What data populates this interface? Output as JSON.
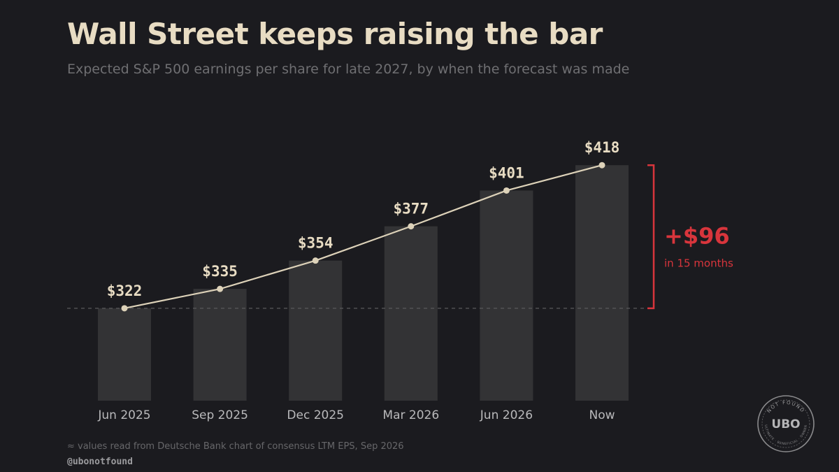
{
  "title": "Wall Street keeps raising the bar",
  "subtitle": "Expected S&P 500 earnings per share for late 2027, by when the forecast was made",
  "chart_data": {
    "type": "bar",
    "categories": [
      "Jun 2025",
      "Sep 2025",
      "Dec 2025",
      "Mar 2026",
      "Jun 2026",
      "Now"
    ],
    "values": [
      322,
      335,
      354,
      377,
      401,
      418
    ],
    "value_labels": [
      "$322",
      "$335",
      "$354",
      "$377",
      "$401",
      "$418"
    ],
    "overlay": "line",
    "ylim": [
      260,
      435
    ],
    "baseline_reference": 322,
    "grid": false,
    "legend": "none",
    "annotation": {
      "value": "+$96",
      "text": "in 15 months"
    }
  },
  "colors": {
    "background": "#1b1b1f",
    "bar": "#333335",
    "line": "#ddd2b9",
    "label": "#e8dcc3",
    "accent": "#d8353c",
    "axis_text": "#b9b9bb"
  },
  "footnote": "≈ values read from Deutsche Bank chart of consensus LTM EPS, Sep 2026",
  "handle": "@ubonotfound",
  "logo": {
    "center": "UBO",
    "top_text": "NOT FOUND",
    "bottom_text": "ULTIMATE · BENEFICIAL · OWNER"
  }
}
